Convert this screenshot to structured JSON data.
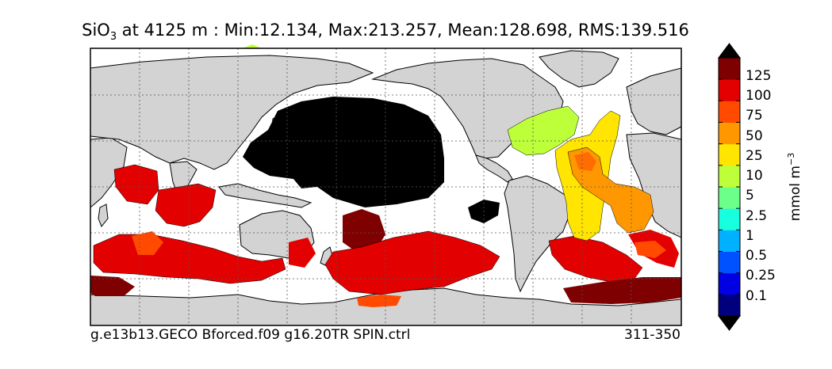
{
  "title": {
    "variable": "SiO",
    "subscript": "3",
    "rest": " at 4125 m : Min:12.134, Max:213.257, Mean:128.698, RMS:139.516"
  },
  "caption": {
    "case_name": "g.e13b13.GECO Bforced.f09 g16.20TR SPIN.ctrl",
    "years": "311-350"
  },
  "colorbar": {
    "units_text": "mmol m",
    "units_exponent": "−3",
    "colors": [
      "#00007f",
      "#0000e3",
      "#0051ff",
      "#00b1ff",
      "#17ffdf",
      "#6cff8a",
      "#bdff39",
      "#ffe500",
      "#ff9800",
      "#ff4a00",
      "#e30000",
      "#7f0000"
    ],
    "tick_labels": [
      "0.1",
      "0.25",
      "0.5",
      "1",
      "2.5",
      "5",
      "10",
      "25",
      "50",
      "75",
      "100",
      "125"
    ],
    "extend": "both"
  },
  "map": {
    "projection": "plate carree",
    "gridlines": "dashed",
    "land_color": "#d3d3d3",
    "no_data_color": "#ffffff",
    "out_of_range_high_color": "#000000"
  }
}
